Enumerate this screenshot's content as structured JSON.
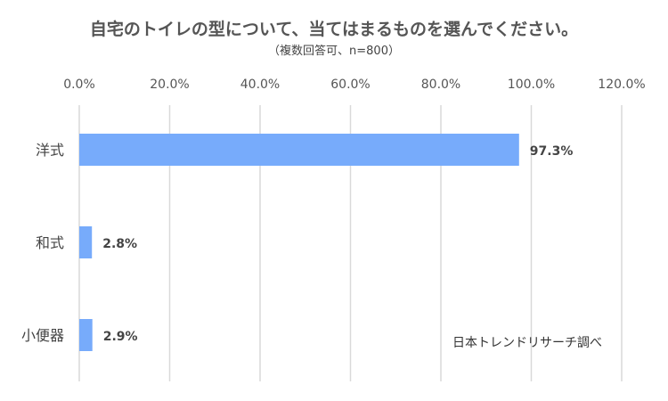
{
  "chart_data": {
    "type": "bar",
    "orientation": "horizontal",
    "title": "自宅のトイレの型について、当てはまるものを選んでください。",
    "subtitle": "（複数回答可、n=800）",
    "categories": [
      "洋式",
      "和式",
      "小便器"
    ],
    "values": [
      97.3,
      2.8,
      2.9
    ],
    "data_labels": [
      "97.3%",
      "2.8%",
      "2.9%"
    ],
    "x_ticks": [
      0,
      20,
      40,
      60,
      80,
      100,
      120
    ],
    "x_tick_labels": [
      "0.0%",
      "20.0%",
      "40.0%",
      "60.0%",
      "80.0%",
      "100.0%",
      "120.0%"
    ],
    "xlim": [
      0,
      120
    ],
    "xaxis_position": "top",
    "grid": true,
    "legend": "none",
    "bar_color": "#77abfb",
    "grid_color": "#d9d9d9"
  },
  "credit": "日本トレンドリサーチ調べ"
}
